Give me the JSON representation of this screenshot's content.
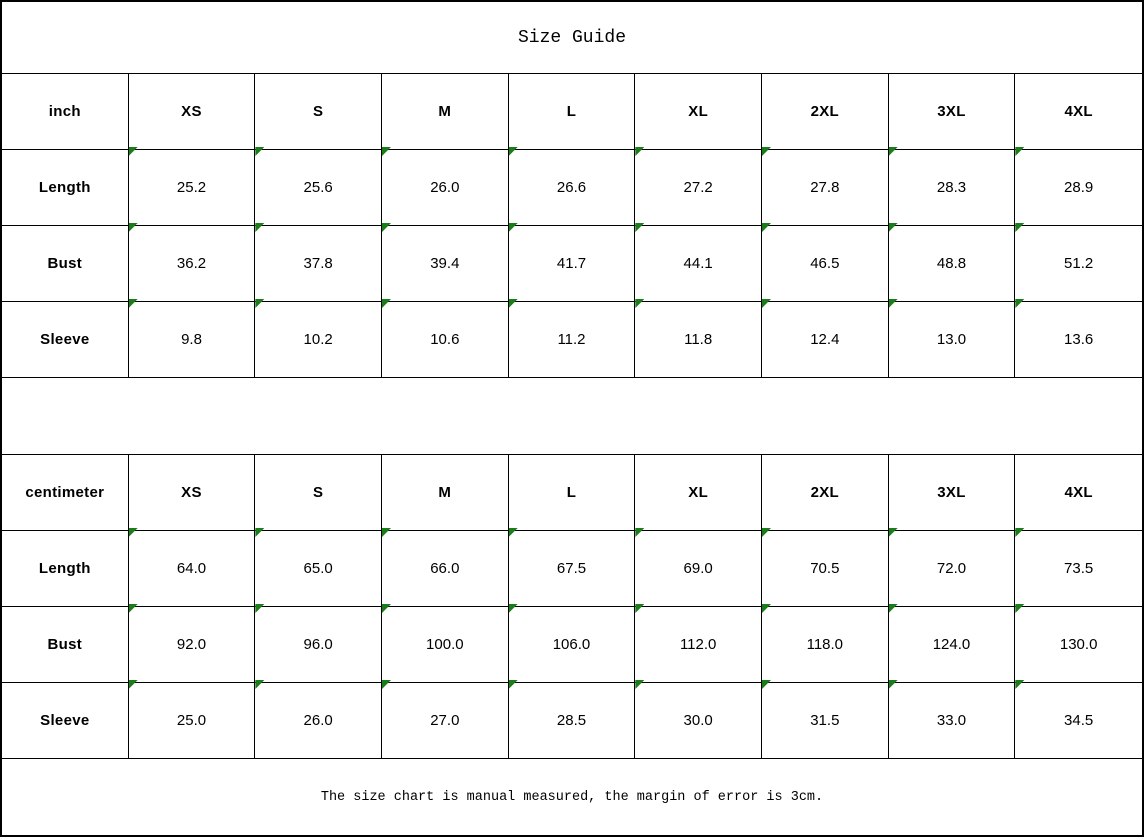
{
  "title": "Size Guide",
  "footer_note": "The size chart is manual measured, the margin of error is 3cm.",
  "colors": {
    "background": "#ffffff",
    "border": "#000000",
    "text": "#000000",
    "flag_green": "#1a7d1a"
  },
  "tables": [
    {
      "unit_label": "inch",
      "sizes": [
        "XS",
        "S",
        "M",
        "L",
        "XL",
        "2XL",
        "3XL",
        "4XL"
      ],
      "rows": [
        {
          "label": "Length",
          "values": [
            "25.2",
            "25.6",
            "26.0",
            "26.6",
            "27.2",
            "27.8",
            "28.3",
            "28.9"
          ]
        },
        {
          "label": "Bust",
          "values": [
            "36.2",
            "37.8",
            "39.4",
            "41.7",
            "44.1",
            "46.5",
            "48.8",
            "51.2"
          ]
        },
        {
          "label": "Sleeve",
          "values": [
            "9.8",
            "10.2",
            "10.6",
            "11.2",
            "11.8",
            "12.4",
            "13.0",
            "13.6"
          ]
        }
      ]
    },
    {
      "unit_label": "centimeter",
      "sizes": [
        "XS",
        "S",
        "M",
        "L",
        "XL",
        "2XL",
        "3XL",
        "4XL"
      ],
      "rows": [
        {
          "label": "Length",
          "values": [
            "64.0",
            "65.0",
            "66.0",
            "67.5",
            "69.0",
            "70.5",
            "72.0",
            "73.5"
          ]
        },
        {
          "label": "Bust",
          "values": [
            "92.0",
            "96.0",
            "100.0",
            "106.0",
            "112.0",
            "118.0",
            "124.0",
            "130.0"
          ]
        },
        {
          "label": "Sleeve",
          "values": [
            "25.0",
            "26.0",
            "27.0",
            "28.5",
            "30.0",
            "31.5",
            "33.0",
            "34.5"
          ]
        }
      ]
    }
  ],
  "chart_data": [
    {
      "type": "table",
      "title": "Size Guide (inch)",
      "columns": [
        "inch",
        "XS",
        "S",
        "M",
        "L",
        "XL",
        "2XL",
        "3XL",
        "4XL"
      ],
      "rows": [
        [
          "Length",
          25.2,
          25.6,
          26.0,
          26.6,
          27.2,
          27.8,
          28.3,
          28.9
        ],
        [
          "Bust",
          36.2,
          37.8,
          39.4,
          41.7,
          44.1,
          46.5,
          48.8,
          51.2
        ],
        [
          "Sleeve",
          9.8,
          10.2,
          10.6,
          11.2,
          11.8,
          12.4,
          13.0,
          13.6
        ]
      ]
    },
    {
      "type": "table",
      "title": "Size Guide (centimeter)",
      "columns": [
        "centimeter",
        "XS",
        "S",
        "M",
        "L",
        "XL",
        "2XL",
        "3XL",
        "4XL"
      ],
      "rows": [
        [
          "Length",
          64.0,
          65.0,
          66.0,
          67.5,
          69.0,
          70.5,
          72.0,
          73.5
        ],
        [
          "Bust",
          92.0,
          96.0,
          100.0,
          106.0,
          112.0,
          118.0,
          124.0,
          130.0
        ],
        [
          "Sleeve",
          25.0,
          26.0,
          27.0,
          28.5,
          30.0,
          31.5,
          33.0,
          34.5
        ]
      ]
    }
  ]
}
